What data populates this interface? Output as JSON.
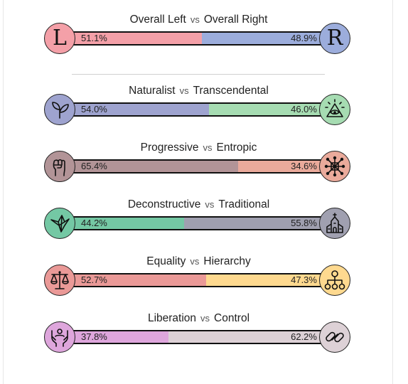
{
  "rows": [
    {
      "left_label": "Overall Left",
      "vs": "vs",
      "right_label": "Overall Right",
      "left_pct": "51.1%",
      "right_pct": "48.9%",
      "left_value": 51.1,
      "left_color": "#f4a0a8",
      "right_color": "#9caddc",
      "left_icon": "letter-l-icon",
      "right_icon": "letter-r-icon",
      "left_glyph": "L",
      "right_glyph": "R"
    },
    {
      "left_label": "Naturalist",
      "vs": "vs",
      "right_label": "Transcendental",
      "left_pct": "54.0%",
      "right_pct": "46.0%",
      "left_value": 54.0,
      "left_color": "#9ea3cf",
      "right_color": "#a6dcb2",
      "left_icon": "sprout-icon",
      "right_icon": "all-seeing-eye-icon"
    },
    {
      "left_label": "Progressive",
      "vs": "vs",
      "right_label": "Entropic",
      "left_pct": "65.4%",
      "right_pct": "34.6%",
      "left_value": 65.4,
      "left_color": "#b29497",
      "right_color": "#eaaa9b",
      "left_icon": "raised-fist-icon",
      "right_icon": "network-burst-icon"
    },
    {
      "left_label": "Deconstructive",
      "vs": "vs",
      "right_label": "Traditional",
      "left_pct": "44.2%",
      "right_pct": "55.8%",
      "left_value": 44.2,
      "left_color": "#74c8a4",
      "right_color": "#a0a0b0",
      "left_icon": "origami-bird-icon",
      "right_icon": "church-icon"
    },
    {
      "left_label": "Equality",
      "vs": "vs",
      "right_label": "Hierarchy",
      "left_pct": "52.7%",
      "right_pct": "47.3%",
      "left_value": 52.7,
      "left_color": "#ea9997",
      "right_color": "#fed98f",
      "left_icon": "scales-icon",
      "right_icon": "org-chart-icon"
    },
    {
      "left_label": "Liberation",
      "vs": "vs",
      "right_label": "Control",
      "left_pct": "37.8%",
      "right_pct": "62.2%",
      "left_value": 37.8,
      "left_color": "#dea6dc",
      "right_color": "#ddd1d6",
      "left_icon": "open-hands-icon",
      "right_icon": "chain-link-icon"
    }
  ]
}
